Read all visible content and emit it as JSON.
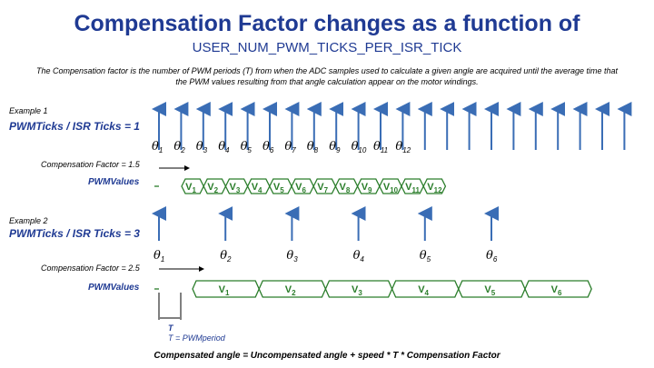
{
  "title_line1": "Compensation Factor changes as a function of",
  "title_line2": "USER_NUM_PWM_TICKS_PER_ISR_TICK",
  "description": "The Compensation factor is the number of PWM periods (T) from when the ADC samples used to calculate a given angle are acquired until the average time that the PWM values resulting from that angle calculation appear on the motor windings.",
  "example1": {
    "label": "Example 1",
    "ticks_label": "PWMTicks / ISR Ticks = 1",
    "compensation_label": "Compensation Factor = 1.5",
    "pwm_values_label": "PWMValues",
    "angles": [
      "θ1",
      "θ2",
      "θ3",
      "θ4",
      "θ5",
      "θ6",
      "θ7",
      "θ8",
      "θ9",
      "θ10",
      "θ11",
      "θ12"
    ],
    "values": [
      "V1",
      "V2",
      "V3",
      "V4",
      "V5",
      "V6",
      "V7",
      "V8",
      "V9",
      "V10",
      "V11",
      "V12"
    ]
  },
  "example2": {
    "label": "Example 2",
    "ticks_label": "PWMTicks / ISR Ticks = 3",
    "compensation_label": "Compensation Factor = 2.5",
    "pwm_values_label": "PWMValues",
    "angles": [
      "θ1",
      "θ2",
      "θ3",
      "θ4",
      "θ5",
      "θ6"
    ],
    "values": [
      "V1",
      "V2",
      "V3",
      "V4",
      "V5",
      "V6"
    ]
  },
  "period_marker": "T",
  "period_label": "T = PWMperiod",
  "footer": "Compensated angle = Uncompensated angle + speed * T * Compensation Factor",
  "colors": {
    "title": "#1f3a93",
    "arrow": "#3a6db5",
    "values_line": "#2a7d2a",
    "label_blue": "#1f3a93"
  }
}
